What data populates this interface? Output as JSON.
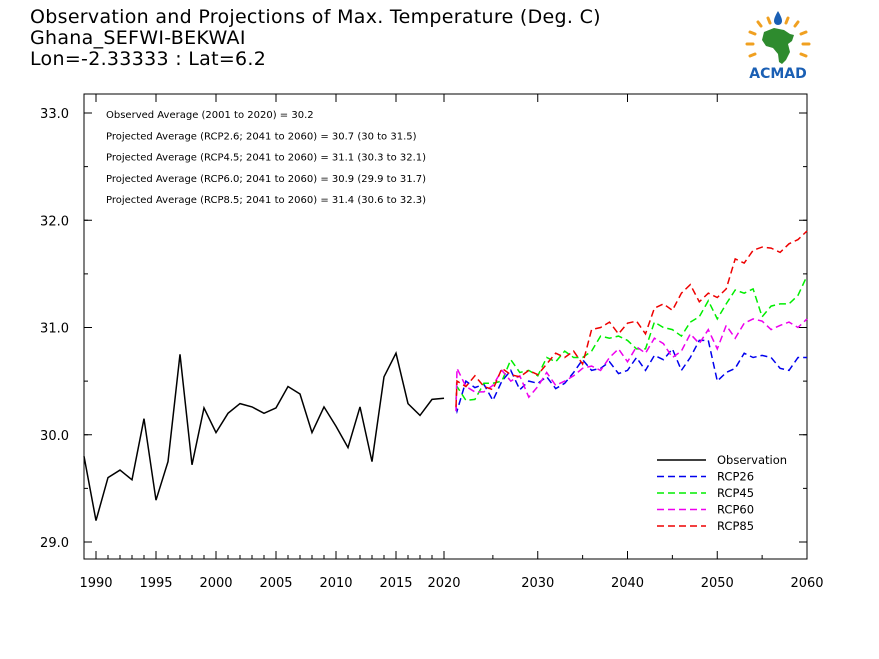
{
  "header": {
    "title": "Observation and Projections of Max. Temperature (Deg. C)",
    "station": "Ghana_SEFWI-BEKWAI",
    "coords": "Lon=-2.33333 : Lat=6.2"
  },
  "logo": {
    "text": "ACMAD",
    "icon": "africa-map-logo"
  },
  "annotations": [
    "Observed Average (2001 to 2020) = 30.2",
    "Projected Average (RCP2.6; 2041 to 2060) = 30.7 (30 to 31.5)",
    "Projected Average (RCP4.5; 2041 to 2060) = 31.1 (30.3 to 32.1)",
    "Projected Average (RCP6.0; 2041 to 2060) = 30.9 (29.9 to 31.7)",
    "Projected Average (RCP8.5; 2041 to 2060) = 31.4 (30.6 to 32.3)"
  ],
  "chart_data": {
    "type": "line",
    "title": "Observation and Projections of Max. Temperature (Deg. C)",
    "xlabel": "",
    "ylabel": "",
    "ylim": [
      28.8,
      33.2
    ],
    "y_ticks": [
      29.0,
      30.0,
      31.0,
      32.0,
      33.0
    ],
    "y_tick_labels": [
      "29.0",
      "30.0",
      "31.0",
      "32.0",
      "33.0"
    ],
    "x_ticks_obs": [
      1990,
      1995,
      2000,
      2005,
      2010,
      2015,
      2020
    ],
    "x_ticks_proj": [
      2030,
      2040,
      2050,
      2060
    ],
    "x_tick_labels": [
      "1990",
      "1995",
      "2000",
      "2005",
      "2010",
      "2015",
      "2020",
      "2030",
      "2040",
      "2050",
      "2060"
    ],
    "grid": false,
    "legend_position": "bottom-right",
    "series": [
      {
        "name": "Observation",
        "color": "#000000",
        "style": "solid",
        "x": [
          1989,
          1990,
          1991,
          1992,
          1993,
          1994,
          1995,
          1996,
          1997,
          1998,
          1999,
          2000,
          2001,
          2002,
          2003,
          2004,
          2005,
          2006,
          2007,
          2008,
          2009,
          2010,
          2011,
          2012,
          2013,
          2014,
          2015,
          2016,
          2017,
          2018,
          2019
        ],
        "values": [
          29.8,
          29.2,
          29.6,
          29.67,
          29.58,
          30.15,
          29.39,
          29.75,
          30.75,
          29.72,
          30.25,
          30.02,
          30.2,
          30.29,
          30.26,
          30.2,
          30.25,
          30.45,
          30.38,
          30.02,
          30.26,
          30.08,
          29.88,
          30.26,
          29.75,
          30.54,
          30.76,
          30.29,
          30.18,
          30.33,
          30.34
        ]
      },
      {
        "name": "RCP26",
        "color": "#0000ee",
        "style": "dashed",
        "x": [
          2020,
          2021,
          2022,
          2023,
          2024,
          2025,
          2026,
          2027,
          2028,
          2029,
          2030,
          2031,
          2032,
          2033,
          2034,
          2035,
          2036,
          2037,
          2038,
          2039,
          2040,
          2041,
          2042,
          2043,
          2044,
          2045,
          2046,
          2047,
          2048,
          2049,
          2050,
          2051,
          2052,
          2053,
          2054,
          2055,
          2056,
          2057,
          2058,
          2059,
          2060
        ],
        "values": [
          30.26,
          30.22,
          30.5,
          30.44,
          30.47,
          30.32,
          30.5,
          30.6,
          30.42,
          30.5,
          30.48,
          30.54,
          30.43,
          30.48,
          30.58,
          30.7,
          30.6,
          30.62,
          30.68,
          30.57,
          30.6,
          30.72,
          30.6,
          30.74,
          30.7,
          30.8,
          30.6,
          30.72,
          30.88,
          30.88,
          30.5,
          30.58,
          30.62,
          30.76,
          30.72,
          30.74,
          30.72,
          30.62,
          30.6,
          30.72,
          30.72
        ]
      },
      {
        "name": "RCP45",
        "color": "#00ee00",
        "style": "dashed",
        "x": [
          2020,
          2021,
          2022,
          2023,
          2024,
          2025,
          2026,
          2027,
          2028,
          2029,
          2030,
          2031,
          2032,
          2033,
          2034,
          2035,
          2036,
          2037,
          2038,
          2039,
          2040,
          2041,
          2042,
          2043,
          2044,
          2045,
          2046,
          2047,
          2048,
          2049,
          2050,
          2051,
          2052,
          2053,
          2054,
          2055,
          2056,
          2057,
          2058,
          2059,
          2060
        ],
        "values": [
          30.33,
          30.45,
          30.32,
          30.33,
          30.48,
          30.48,
          30.5,
          30.7,
          30.58,
          30.6,
          30.55,
          30.72,
          30.68,
          30.78,
          30.72,
          30.72,
          30.78,
          30.92,
          30.9,
          30.92,
          30.88,
          30.8,
          30.8,
          31.05,
          31.0,
          30.98,
          30.92,
          31.05,
          31.1,
          31.25,
          31.08,
          31.22,
          31.35,
          31.32,
          31.36,
          31.1,
          31.2,
          31.22,
          31.22,
          31.3,
          31.48
        ]
      },
      {
        "name": "RCP60",
        "color": "#ee00ee",
        "style": "dashed",
        "x": [
          2020,
          2021,
          2022,
          2023,
          2024,
          2025,
          2026,
          2027,
          2028,
          2029,
          2030,
          2031,
          2032,
          2033,
          2034,
          2035,
          2036,
          2037,
          2038,
          2039,
          2040,
          2041,
          2042,
          2043,
          2044,
          2045,
          2046,
          2047,
          2048,
          2049,
          2050,
          2051,
          2052,
          2053,
          2054,
          2055,
          2056,
          2057,
          2058,
          2059,
          2060
        ],
        "values": [
          30.22,
          30.62,
          30.45,
          30.4,
          30.4,
          30.46,
          30.6,
          30.5,
          30.55,
          30.35,
          30.45,
          30.58,
          30.46,
          30.5,
          30.55,
          30.62,
          30.64,
          30.6,
          30.72,
          30.8,
          30.68,
          30.82,
          30.76,
          30.9,
          30.85,
          30.72,
          30.78,
          30.94,
          30.85,
          30.98,
          30.8,
          31.02,
          30.9,
          31.04,
          31.08,
          31.06,
          30.98,
          31.02,
          31.05,
          31.0,
          31.08
        ]
      },
      {
        "name": "RCP85",
        "color": "#ee0000",
        "style": "dashed",
        "x": [
          2020,
          2021,
          2022,
          2023,
          2024,
          2025,
          2026,
          2027,
          2028,
          2029,
          2030,
          2031,
          2032,
          2033,
          2034,
          2035,
          2036,
          2037,
          2038,
          2039,
          2040,
          2041,
          2042,
          2043,
          2044,
          2045,
          2046,
          2047,
          2048,
          2049,
          2050,
          2051,
          2052,
          2053,
          2054,
          2055,
          2056,
          2057,
          2058,
          2059,
          2060
        ],
        "values": [
          30.26,
          30.5,
          30.45,
          30.55,
          30.45,
          30.42,
          30.62,
          30.56,
          30.54,
          30.6,
          30.56,
          30.66,
          30.76,
          30.72,
          30.78,
          30.66,
          30.98,
          31.0,
          31.05,
          30.94,
          31.04,
          31.06,
          30.94,
          31.18,
          31.22,
          31.16,
          31.32,
          31.4,
          31.24,
          31.32,
          31.28,
          31.36,
          31.64,
          31.6,
          31.72,
          31.75,
          31.74,
          31.7,
          31.78,
          31.82,
          31.9
        ]
      }
    ]
  }
}
